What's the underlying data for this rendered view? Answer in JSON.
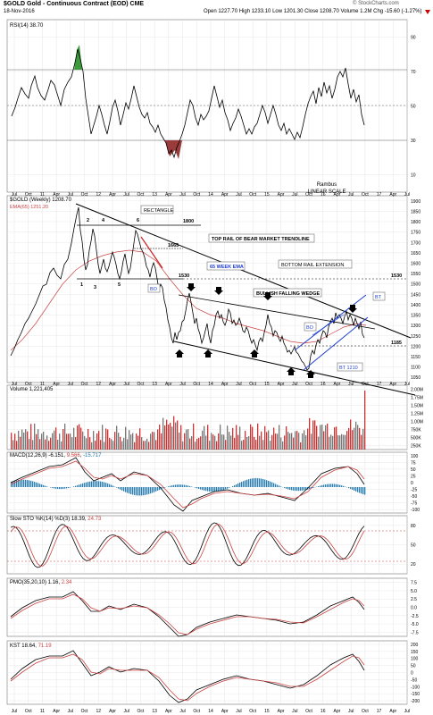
{
  "header": {
    "symbol_line": "$GOLD Gold - Continuous Contract (EOD) CME",
    "date": "18-Nov-2016",
    "quote_line": "Open 1227.70  High 1233.10  Low 1201.30  Close 1208.70  Volume 1.2M  Chg -15.60 (-1.27%)",
    "chg_icon": "down-arrow-icon",
    "watermark": "© StockCharts.com"
  },
  "colors": {
    "price": "#000000",
    "ema": "#cc4444",
    "volume_up": "#cc3333",
    "volume_down": "#777777",
    "blue_channel": "#1f3fcf",
    "macd_hist": "#2a7fb0",
    "rsi_highlight_green": "#3c9a3c",
    "rsi_highlight_red": "#9a3c3c"
  },
  "x_axis": {
    "labels": [
      "Jul",
      "Oct",
      "11",
      "Apr",
      "Jul",
      "Oct",
      "12",
      "Apr",
      "Jul",
      "Oct",
      "13",
      "Apr",
      "Jul",
      "Oct",
      "14",
      "Apr",
      "Jul",
      "Oct",
      "15",
      "Apr",
      "Jul",
      "Oct",
      "16",
      "Apr",
      "Jul",
      "Oct",
      "17",
      "Apr",
      "Jul"
    ]
  },
  "rsi_panel": {
    "label": "RSI(14) 38.70",
    "levels": [
      "90",
      "70",
      "50",
      "30",
      "10"
    ],
    "note_author": "Rambus",
    "note_scale": "LINEAR SCALE"
  },
  "price_panel": {
    "label": "$GOLD (Weekly) 1208.70",
    "ema_label": "EMA(65) 1251.20",
    "y_ticks": [
      "1900",
      "1850",
      "1800",
      "1750",
      "1700",
      "1650",
      "1600",
      "1550",
      "1500",
      "1450",
      "1400",
      "1350",
      "1300",
      "1250",
      "1200",
      "1150",
      "1100",
      "1050"
    ],
    "annotations": {
      "rectangle": "RECTANGLE",
      "level_1800": "1800",
      "level_1665": "1665",
      "level_1530a": "1530",
      "level_1530b": "1530",
      "level_1185": "1185",
      "top_rail": "TOP RAIL OF BEAR MARKET TRENDLINE",
      "ema_note": "65 WEEK EMA",
      "bottom_rail": "BOTTOM RAIL EXTENSION",
      "wedge": "BULLISH FALLING WEDGE",
      "bo1": "BO",
      "bo2": "BO",
      "bt1": "BT",
      "bt2": "BT 1210",
      "n1": "1",
      "n2": "2",
      "n3": "3",
      "n4": "4",
      "n5": "5",
      "n6": "6"
    }
  },
  "volume_panel": {
    "label": "Volume 1,221,405",
    "y_ticks": [
      "2.00M",
      "1.75M",
      "1.50M",
      "1.25M",
      "1.00M",
      "750K",
      "500K",
      "250K"
    ]
  },
  "macd_panel": {
    "label": "MACD(12,26,9) -6.151, ",
    "v2": "9.566",
    "v3": "-15.717",
    "y_ticks": [
      "100",
      "75",
      "50",
      "25",
      "0",
      "-25",
      "-50",
      "-75",
      "-100"
    ]
  },
  "sto_panel": {
    "label": "Slow STO %K(14) %D(3) 18.39, ",
    "v2": "24.73",
    "y_ticks": [
      "80",
      "50",
      "20"
    ]
  },
  "pmo_panel": {
    "label": "PMO(35,20,10) 1.16, ",
    "v2": "2.34",
    "y_ticks": [
      "7.5",
      "5.0",
      "2.5",
      "0.0",
      "-2.5",
      "-5.0",
      "-7.5"
    ]
  },
  "kst_panel": {
    "label": "KST 18.64, ",
    "v2": "71.19",
    "y_ticks": [
      "200",
      "150",
      "100",
      "50",
      "0",
      "-50",
      "-100",
      "-150",
      "-200"
    ]
  },
  "chart_data": {
    "type": "line",
    "title": "$GOLD Gold - Continuous Contract (EOD) CME",
    "x_range": [
      "2010-07",
      "2017-07"
    ],
    "series": [
      {
        "name": "$GOLD (Weekly)",
        "x": [
          "2010-07",
          "2011-04",
          "2011-09",
          "2011-12",
          "2012-02",
          "2012-05",
          "2012-10",
          "2013-04",
          "2013-06",
          "2013-08",
          "2013-12",
          "2014-03",
          "2014-11",
          "2015-01",
          "2015-12",
          "2016-07",
          "2016-11"
        ],
        "values": [
          1200,
          1480,
          1900,
          1550,
          1780,
          1540,
          1790,
          1400,
          1180,
          1420,
          1200,
          1390,
          1140,
          1300,
          1050,
          1370,
          1208.7
        ]
      },
      {
        "name": "EMA(65)",
        "x": [
          "2010-07",
          "2011-09",
          "2012-06",
          "2013-01",
          "2013-10",
          "2014-06",
          "2015-06",
          "2016-02",
          "2016-11"
        ],
        "values": [
          1180,
          1450,
          1620,
          1660,
          1450,
          1300,
          1230,
          1150,
          1251.2
        ]
      }
    ],
    "ylim": [
      1000,
      1950
    ],
    "horizontal_levels": [
      1800,
      1665,
      1530,
      1185
    ]
  }
}
